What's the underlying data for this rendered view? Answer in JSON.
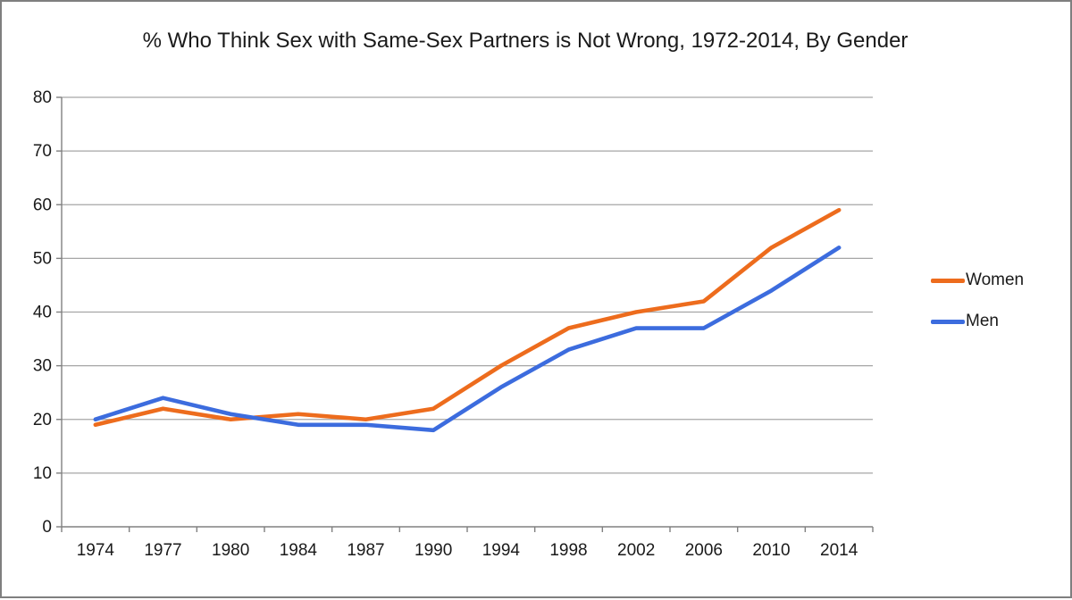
{
  "chart_data": {
    "type": "line",
    "title": "% Who Think Sex with Same-Sex Partners is Not Wrong, 1972-2014, By Gender",
    "categories": [
      "1974",
      "1977",
      "1980",
      "1984",
      "1987",
      "1990",
      "1994",
      "1998",
      "2002",
      "2006",
      "2010",
      "2014"
    ],
    "series": [
      {
        "name": "Women",
        "color": "#ED6C1D",
        "values": [
          19,
          22,
          20,
          21,
          20,
          22,
          30,
          37,
          40,
          42,
          52,
          59
        ]
      },
      {
        "name": "Men",
        "color": "#3C6CDE",
        "values": [
          20,
          24,
          21,
          19,
          19,
          18,
          26,
          33,
          37,
          37,
          44,
          52
        ]
      }
    ],
    "xlabel": "",
    "ylabel": "",
    "ylim": [
      0,
      80
    ],
    "ytick_step": 10,
    "yticks": [
      "0",
      "10",
      "20",
      "30",
      "40",
      "50",
      "60",
      "70",
      "80"
    ],
    "grid": true,
    "legend_position": "right"
  },
  "colors": {
    "gridline": "#a6a6a6",
    "axis": "#808080",
    "text": "#1a1a1a",
    "border": "#7f7f7f"
  }
}
